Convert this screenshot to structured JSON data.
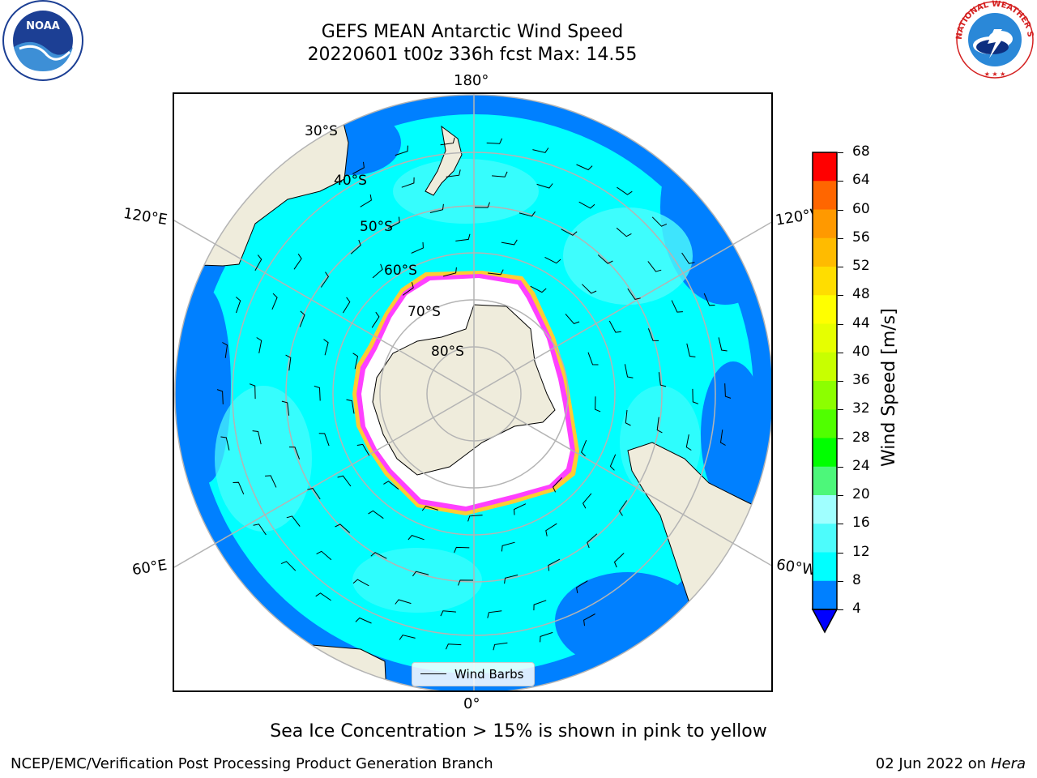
{
  "title": {
    "line1": "GEFS MEAN Antarctic Wind Speed",
    "line2": "20220601 t00z 336h fcst   Max: 14.55"
  },
  "map": {
    "longitude_labels": {
      "top": "180°",
      "bottom": "0°",
      "upper_left": "120°E",
      "lower_left": "60°E",
      "upper_right": "120°W",
      "lower_right": "60°W"
    },
    "latitude_labels": [
      "30°S",
      "40°S",
      "50°S",
      "60°S",
      "70°S",
      "80°S"
    ],
    "colors": {
      "ocean_fast": "#0080ff",
      "ocean_mid": "#00ffff",
      "ocean_light": "#4dfcfc",
      "land": "#efecdc",
      "ice_white": "#ffffff",
      "ice_pink": "#ff40ff",
      "ice_yellow": "#ffcc33",
      "grid": "#b4b4b4"
    }
  },
  "legend": {
    "label": "Wind Barbs"
  },
  "colorbar": {
    "label": "Wind Speed [m/s]",
    "ticks": [
      "68",
      "64",
      "60",
      "56",
      "52",
      "48",
      "44",
      "40",
      "36",
      "32",
      "28",
      "24",
      "20",
      "16",
      "12",
      "8",
      "4"
    ],
    "colors": [
      "#ff0000",
      "#ff3300",
      "#ff6600",
      "#ff9900",
      "#ffbb00",
      "#ffdd00",
      "#ffff00",
      "#e6ff00",
      "#c8ff00",
      "#8cff00",
      "#50ff00",
      "#00ff00",
      "#4df77a",
      "#a0ffff",
      "#4dfcfc",
      "#00ffff",
      "#0080ff"
    ],
    "extend_color": "#0000ff"
  },
  "footer": {
    "note": "Sea Ice Concentration > 15% is shown in pink to yellow",
    "credit_left": "NCEP/EMC/Verification Post Processing Product Generation Branch",
    "date": "02 Jun 2022 on",
    "machine": "Hera"
  },
  "logos": {
    "left": "NOAA",
    "right": "NATIONAL WEATHER SERVICE"
  }
}
